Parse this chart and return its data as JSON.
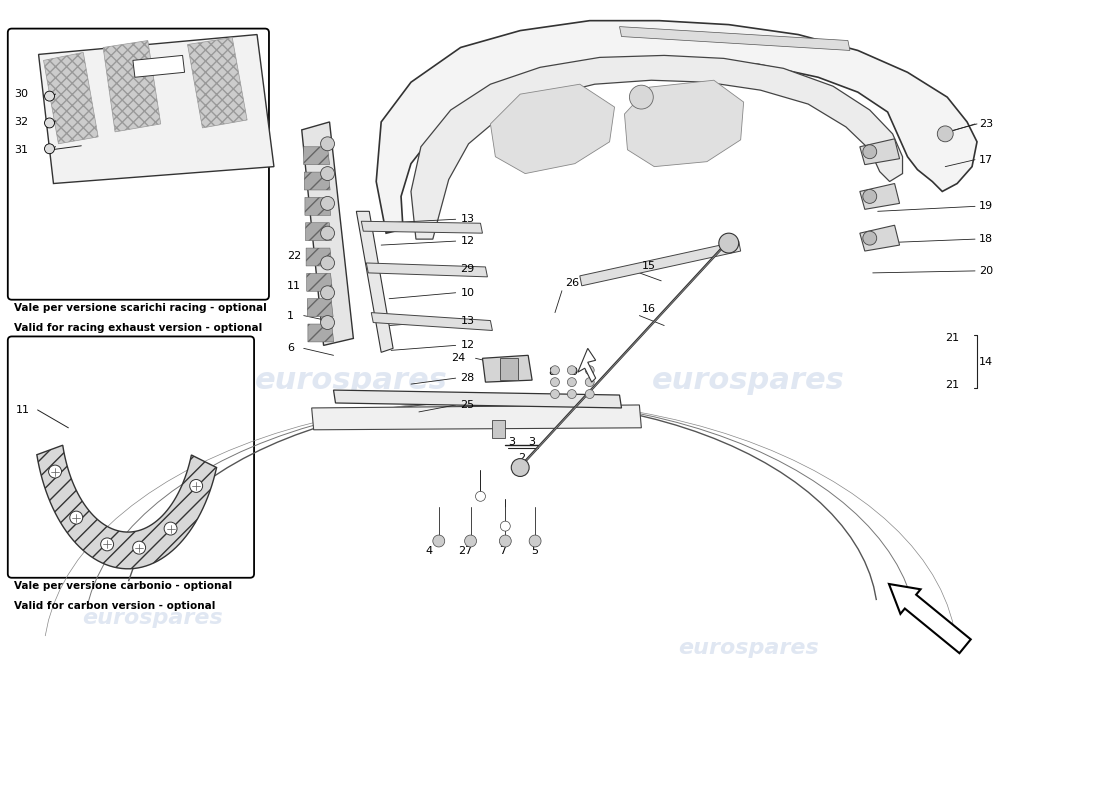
{
  "bg_color": "#ffffff",
  "watermark_color": "#c8d4e8",
  "box1_label_it": "Vale per versione scarichi racing - optional",
  "box1_label_en": "Valid for racing exhaust version - optional",
  "box2_label_it": "Vale per versione carbonio - optional",
  "box2_label_en": "Valid for carbon version - optional",
  "line_color": "#222222",
  "light_gray": "#e8e8e8",
  "mid_gray": "#cccccc"
}
